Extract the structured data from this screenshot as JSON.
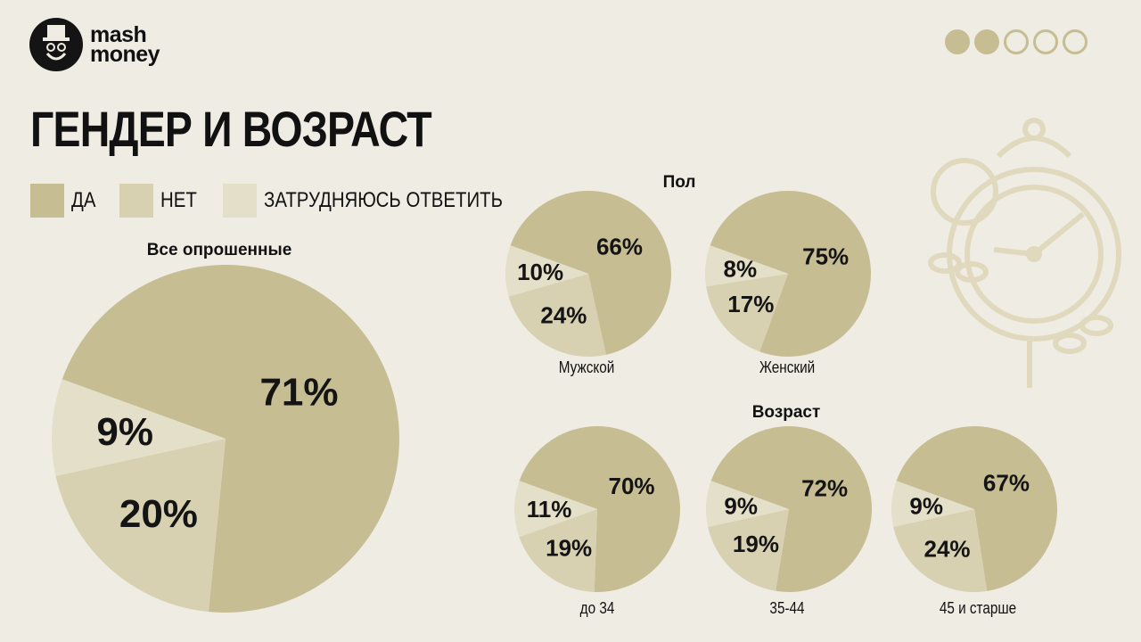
{
  "brand": {
    "line1": "mash",
    "line2": "money"
  },
  "progress": {
    "total": 5,
    "current": 2
  },
  "title": "ГЕНДЕР И ВОЗРАСТ",
  "legend": [
    {
      "label": "ДА",
      "color": "#c7bd93"
    },
    {
      "label": "НЕТ",
      "color": "#d8d1b1"
    },
    {
      "label": "ЗАТРУДНЯЮСЬ ОТВЕТИТЬ",
      "color": "#e4dfc9"
    }
  ],
  "sections": {
    "gender": "Пол",
    "age": "Возраст",
    "all": "Все опрошенные"
  },
  "chart_data": [
    {
      "type": "pie",
      "title": "Все опрошенные",
      "categories": [
        "ДА",
        "НЕТ",
        "ЗАТРУДНЯЮСЬ ОТВЕТИТЬ"
      ],
      "values": [
        71,
        20,
        9
      ],
      "labels": [
        "71%",
        "20%",
        "9%"
      ]
    },
    {
      "type": "pie",
      "title": "Мужской",
      "categories": [
        "ДА",
        "НЕТ",
        "ЗАТРУДНЯЮСЬ ОТВЕТИТЬ"
      ],
      "values": [
        66,
        24,
        10
      ],
      "labels": [
        "66%",
        "24%",
        "10%"
      ]
    },
    {
      "type": "pie",
      "title": "Женский",
      "categories": [
        "ДА",
        "НЕТ",
        "ЗАТРУДНЯЮСЬ ОТВЕТИТЬ"
      ],
      "values": [
        75,
        17,
        8
      ],
      "labels": [
        "75%",
        "17%",
        "8%"
      ]
    },
    {
      "type": "pie",
      "title": "до 34",
      "categories": [
        "ДА",
        "НЕТ",
        "ЗАТРУДНЯЮСЬ ОТВЕТИТЬ"
      ],
      "values": [
        70,
        19,
        11
      ],
      "labels": [
        "70%",
        "19%",
        "11%"
      ]
    },
    {
      "type": "pie",
      "title": "35-44",
      "categories": [
        "ДА",
        "НЕТ",
        "ЗАТРУДНЯЮСЬ ОТВЕТИТЬ"
      ],
      "values": [
        72,
        19,
        9
      ],
      "labels": [
        "72%",
        "19%",
        "9%"
      ]
    },
    {
      "type": "pie",
      "title": "45 и старше",
      "categories": [
        "ДА",
        "НЕТ",
        "ЗАТРУДНЯЮСЬ ОТВЕТИТЬ"
      ],
      "values": [
        67,
        24,
        9
      ],
      "labels": [
        "67%",
        "24%",
        "9%"
      ]
    }
  ]
}
